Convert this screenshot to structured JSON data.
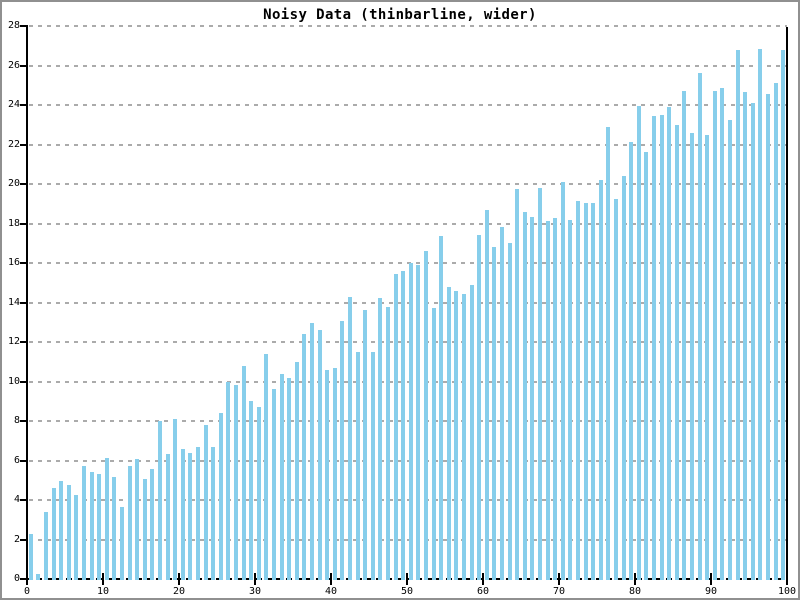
{
  "chart_data": {
    "type": "bar",
    "title": "Noisy Data (thinbarline, wider)",
    "xlabel": "",
    "ylabel": "",
    "xlim": [
      0,
      100
    ],
    "ylim": [
      0,
      28
    ],
    "x_ticks": [
      0,
      10,
      20,
      30,
      40,
      50,
      60,
      70,
      80,
      90,
      100
    ],
    "y_ticks": [
      0,
      2,
      4,
      6,
      8,
      10,
      12,
      14,
      16,
      18,
      20,
      22,
      24,
      26,
      28
    ],
    "grid": "horizontal-dashed",
    "legend": "none",
    "bar_width_units": 0.5,
    "x": [
      0.5,
      1.5,
      2.5,
      3.5,
      4.5,
      5.5,
      6.5,
      7.5,
      8.5,
      9.5,
      10.5,
      11.5,
      12.5,
      13.5,
      14.5,
      15.5,
      16.5,
      17.5,
      18.5,
      19.5,
      20.5,
      21.5,
      22.5,
      23.5,
      24.5,
      25.5,
      26.5,
      27.5,
      28.5,
      29.5,
      30.5,
      31.5,
      32.5,
      33.5,
      34.5,
      35.5,
      36.5,
      37.5,
      38.5,
      39.5,
      40.5,
      41.5,
      42.5,
      43.5,
      44.5,
      45.5,
      46.5,
      47.5,
      48.5,
      49.5,
      50.5,
      51.5,
      52.5,
      53.5,
      54.5,
      55.5,
      56.5,
      57.5,
      58.5,
      59.5,
      60.5,
      61.5,
      62.5,
      63.5,
      64.5,
      65.5,
      66.5,
      67.5,
      68.5,
      69.5,
      70.5,
      71.5,
      72.5,
      73.5,
      74.5,
      75.5,
      76.5,
      77.5,
      78.5,
      79.5,
      80.5,
      81.5,
      82.5,
      83.5,
      84.5,
      85.5,
      86.5,
      87.5,
      88.5,
      89.5,
      90.5,
      91.5,
      92.5,
      93.5,
      94.5,
      95.5,
      96.5,
      97.5,
      98.5,
      99.5
    ],
    "values": [
      2.3,
      0.25,
      3.4,
      4.6,
      4.95,
      4.75,
      4.25,
      5.7,
      5.4,
      5.3,
      6.15,
      5.15,
      3.65,
      5.7,
      6.1,
      5.05,
      5.55,
      8.0,
      6.35,
      8.1,
      6.6,
      6.4,
      6.7,
      7.8,
      6.7,
      8.4,
      10.0,
      9.8,
      10.8,
      9.0,
      8.7,
      11.4,
      9.6,
      10.4,
      10.2,
      11.0,
      12.4,
      12.95,
      12.6,
      10.6,
      10.7,
      13.05,
      14.3,
      11.5,
      13.6,
      11.5,
      14.25,
      13.75,
      15.45,
      15.6,
      16.0,
      15.9,
      16.6,
      13.7,
      17.35,
      14.8,
      14.6,
      14.45,
      14.9,
      17.4,
      18.7,
      16.8,
      17.8,
      17.0,
      19.75,
      18.6,
      18.35,
      19.8,
      18.15,
      18.3,
      20.1,
      18.2,
      19.15,
      19.05,
      19.05,
      20.2,
      22.9,
      19.25,
      20.4,
      22.15,
      23.95,
      21.6,
      23.45,
      23.5,
      23.9,
      23.0,
      24.7,
      22.6,
      25.6,
      22.5,
      24.7,
      24.85,
      23.25,
      26.8,
      24.65,
      24.1,
      26.85,
      24.55,
      25.1,
      26.8
    ],
    "colors": {
      "bar": "#87CEEB",
      "gridline": "#ababab",
      "axis": "#000000",
      "title": "#000000",
      "frame": "#909090",
      "background": "#ffffff"
    }
  }
}
